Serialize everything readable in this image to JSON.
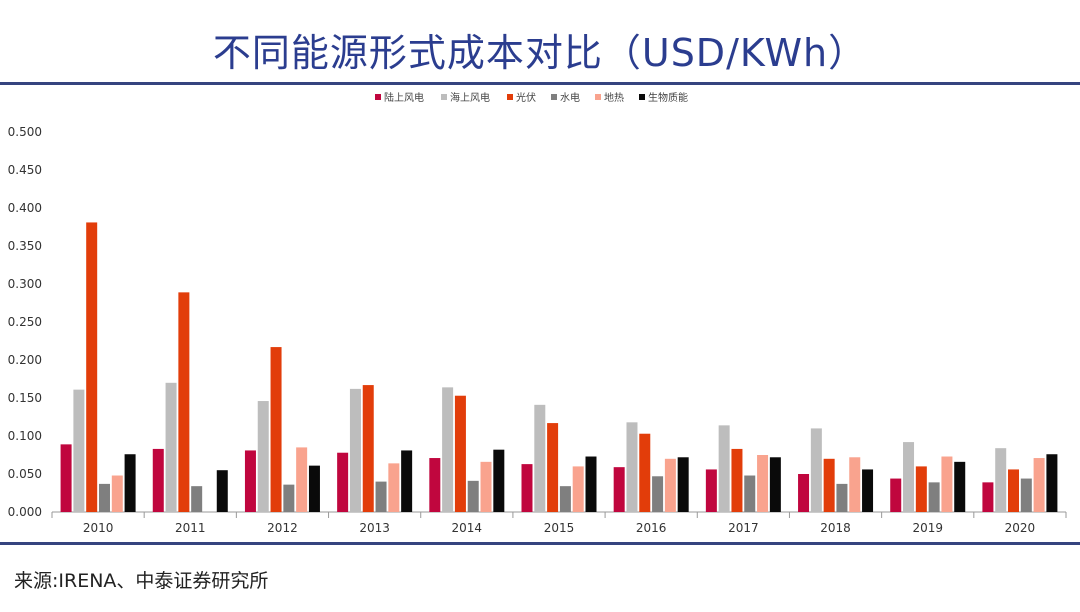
{
  "header": {
    "title": "不同能源形式成本对比（USD/KWh）"
  },
  "footer": {
    "source": "来源:IRENA、中泰证券研究所"
  },
  "chart_data": {
    "type": "bar",
    "title": "",
    "xlabel": "",
    "ylabel": "",
    "ylim": [
      0,
      0.5
    ],
    "yticks": [
      "0.000",
      "0.050",
      "0.100",
      "0.150",
      "0.200",
      "0.250",
      "0.300",
      "0.350",
      "0.400",
      "0.450",
      "0.500"
    ],
    "legend_position": "top-center",
    "categories": [
      "2010",
      "2011",
      "2012",
      "2013",
      "2014",
      "2015",
      "2016",
      "2017",
      "2018",
      "2019",
      "2020"
    ],
    "series": [
      {
        "name": "陆上风电",
        "color": "#c0063e",
        "values": [
          0.089,
          0.083,
          0.081,
          0.078,
          0.071,
          0.063,
          0.059,
          0.056,
          0.05,
          0.044,
          0.039
        ]
      },
      {
        "name": "海上风电",
        "color": "#bdbdbd",
        "values": [
          0.161,
          0.17,
          0.146,
          0.162,
          0.164,
          0.141,
          0.118,
          0.114,
          0.11,
          0.092,
          0.084
        ]
      },
      {
        "name": "光伏",
        "color": "#e23d0a",
        "values": [
          0.381,
          0.289,
          0.217,
          0.167,
          0.153,
          0.117,
          0.103,
          0.083,
          0.07,
          0.06,
          0.056
        ]
      },
      {
        "name": "水电",
        "color": "#7f7f7f",
        "values": [
          0.037,
          0.034,
          0.036,
          0.04,
          0.041,
          0.034,
          0.047,
          0.048,
          0.037,
          0.039,
          0.044
        ]
      },
      {
        "name": "地热",
        "color": "#f9a38e",
        "values": [
          0.048,
          null,
          0.085,
          0.064,
          0.066,
          0.06,
          0.07,
          0.075,
          0.072,
          0.073,
          0.071
        ]
      },
      {
        "name": "生物质能",
        "color": "#0a0a0a",
        "values": [
          0.076,
          0.055,
          0.061,
          0.081,
          0.082,
          0.073,
          0.072,
          0.072,
          0.056,
          0.066,
          0.076
        ]
      }
    ]
  }
}
